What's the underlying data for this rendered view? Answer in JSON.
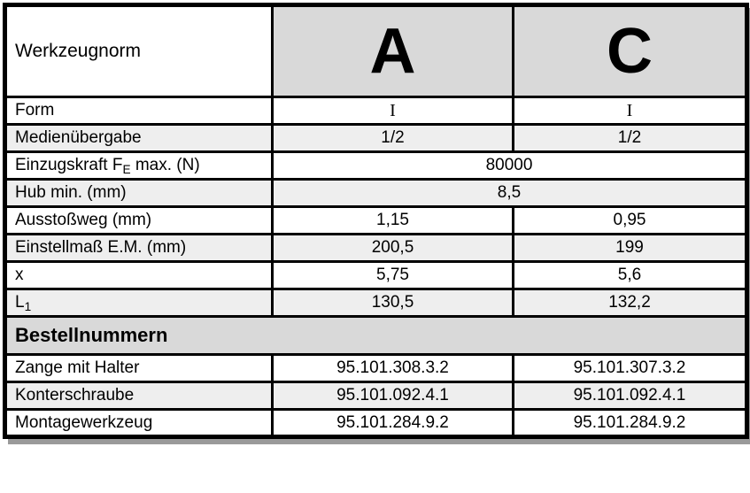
{
  "colors": {
    "header_bg": "#d9d9d9",
    "section_bg": "#d9d9d9",
    "stripe_bg": "#eeeeee",
    "row_bg": "#ffffff",
    "border": "#000000",
    "shadow": "#9a9a9a",
    "text": "#000000"
  },
  "table": {
    "header": {
      "label": "Werkzeugnorm",
      "columns": [
        "A",
        "C"
      ]
    },
    "rows": [
      {
        "label": {
          "pre": "Form"
        },
        "values": [
          "I",
          "I"
        ]
      },
      {
        "label": {
          "pre": "Medienübergabe"
        },
        "values": [
          "1/2",
          "1/2"
        ]
      },
      {
        "label": {
          "pre": "Einzugskraft F",
          "sub": "E",
          "post": " max. (N)"
        },
        "values": [
          "80000"
        ]
      },
      {
        "label": {
          "pre": "Hub min. (mm)"
        },
        "values": [
          "8,5"
        ]
      },
      {
        "label": {
          "pre": "Ausstoßweg (mm)"
        },
        "values": [
          "1,15",
          "0,95"
        ]
      },
      {
        "label": {
          "pre": "Einstellmaß E.M. (mm)"
        },
        "values": [
          "200,5",
          "199"
        ]
      },
      {
        "label": {
          "pre": "x"
        },
        "values": [
          "5,75",
          "5,6"
        ]
      },
      {
        "label": {
          "pre": "L",
          "sub": "1"
        },
        "values": [
          "130,5",
          "132,2"
        ]
      }
    ],
    "section_title": "Bestellnummern",
    "order_rows": [
      {
        "label": "Zange mit Halter",
        "values": [
          "95.101.308.3.2",
          "95.101.307.3.2"
        ]
      },
      {
        "label": "Konterschraube",
        "values": [
          "95.101.092.4.1",
          "95.101.092.4.1"
        ]
      },
      {
        "label": "Montagewerkzeug",
        "values": [
          "95.101.284.9.2",
          "95.101.284.9.2"
        ]
      }
    ]
  }
}
